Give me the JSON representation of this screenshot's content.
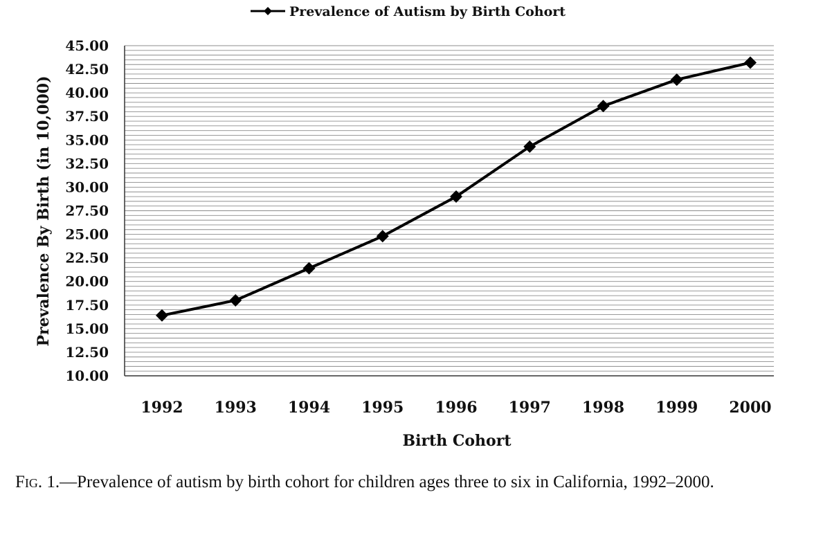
{
  "chart_data": {
    "type": "line",
    "legend": {
      "label": "Prevalence of Autism by Birth Cohort",
      "position": "top-center"
    },
    "xlabel": "Birth Cohort",
    "ylabel": "Prevalence By Birth (in 10,000)",
    "categories": [
      "1992",
      "1993",
      "1994",
      "1995",
      "1996",
      "1997",
      "1998",
      "1999",
      "2000"
    ],
    "series": [
      {
        "name": "Prevalence of Autism by Birth Cohort",
        "values": [
          16.4,
          18.0,
          21.4,
          24.8,
          29.0,
          34.3,
          38.6,
          41.4,
          43.2
        ],
        "color": "#000000",
        "marker": "diamond"
      }
    ],
    "ylim": [
      10,
      45
    ],
    "yticks": [
      "45.00",
      "42.50",
      "40.00",
      "37.50",
      "35.00",
      "32.50",
      "30.00",
      "27.50",
      "25.00",
      "22.50",
      "20.00",
      "17.50",
      "15.00",
      "12.50",
      "10.00"
    ],
    "grid": "horizontal"
  },
  "caption": {
    "label": "Fig. 1.",
    "text": "—Prevalence of autism by birth cohort for children ages three to six in California, 1992–2000."
  }
}
